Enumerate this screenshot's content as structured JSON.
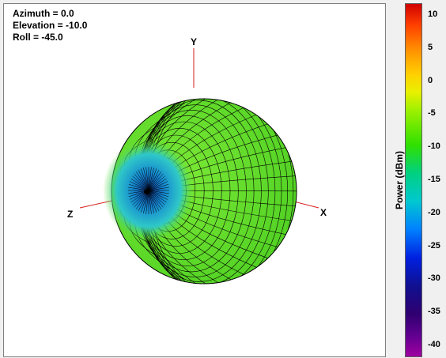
{
  "view": {
    "azimuth_text": "Azimuth = 0.0",
    "elevation_text": "Elevation = -10.0",
    "roll_text": "Roll = -45.0"
  },
  "axes": {
    "x_label": "X",
    "y_label": "Y",
    "z_label": "Z"
  },
  "colorbar": {
    "title": "Power  (dBm)",
    "ticks": [
      "10",
      "5",
      "0",
      "-5",
      "-10",
      "-15",
      "-20",
      "-25",
      "-30",
      "-35",
      "-40"
    ],
    "range": [
      -40,
      10
    ]
  },
  "colors": {
    "sphere_fill": "#66e22a",
    "null_fill": "#1aa0d8",
    "axis_line": "#d81e1e",
    "mesh_line": "#000000"
  }
}
